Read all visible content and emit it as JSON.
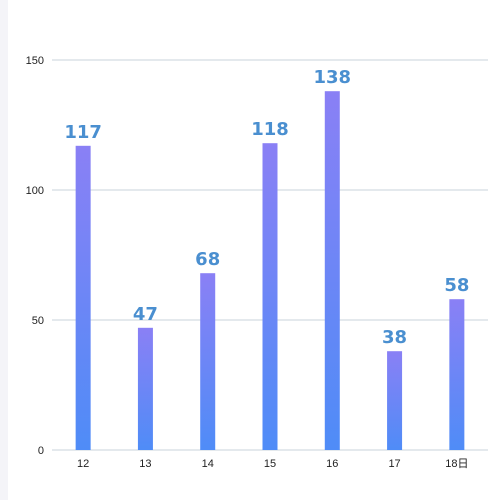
{
  "chart_data": {
    "type": "bar",
    "categories": [
      "12",
      "13",
      "14",
      "15",
      "16",
      "17",
      "18日"
    ],
    "values": [
      117,
      47,
      68,
      118,
      138,
      38,
      58
    ],
    "title": "",
    "xlabel": "",
    "ylabel": "",
    "ylim": [
      0,
      150
    ],
    "yticks": [
      "0",
      "50",
      "100",
      "150"
    ],
    "grid": true,
    "bar_color_top": "#8a80f5",
    "bar_color_bottom": "#4f8cf7",
    "label_color": "#4a8fd0"
  }
}
